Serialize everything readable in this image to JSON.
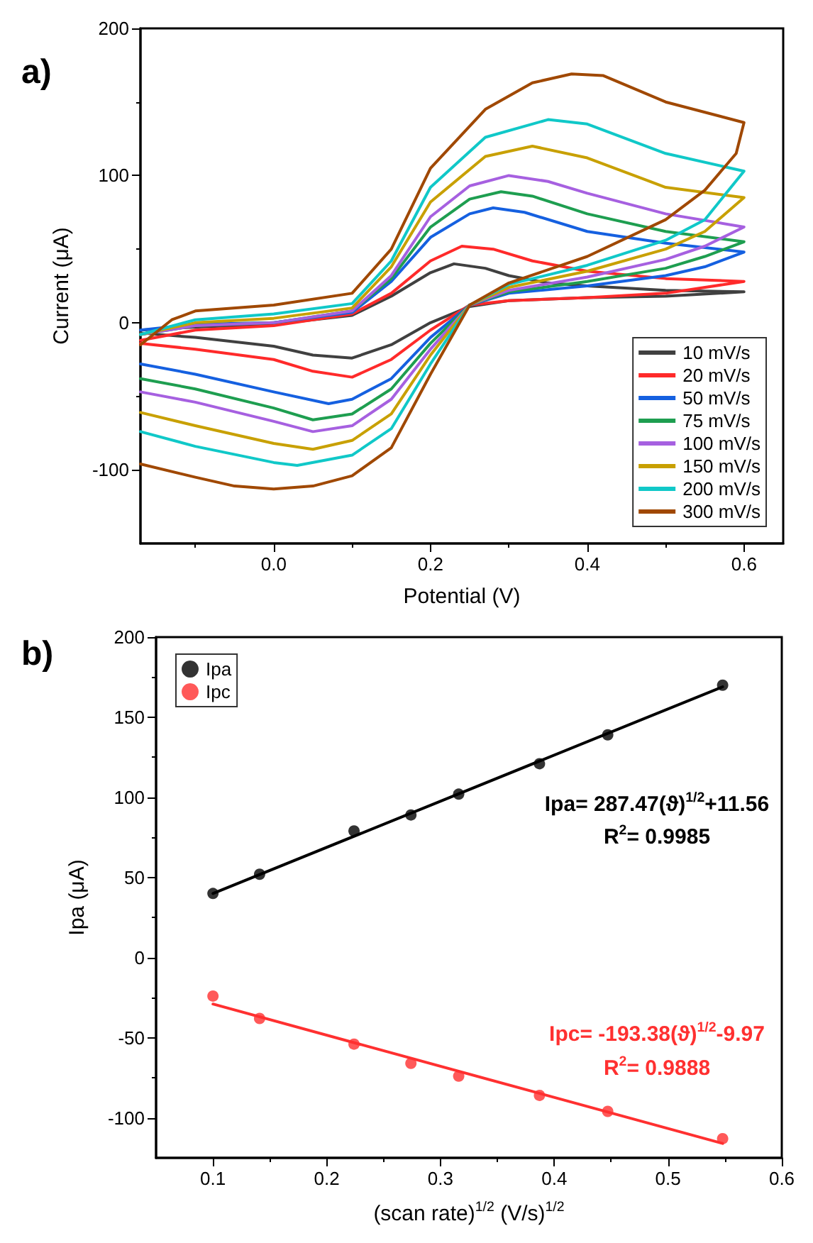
{
  "chart_data": [
    {
      "type": "line",
      "title": "a)",
      "xlabel": "Potential (V)",
      "ylabel": "Current (μA)",
      "xlim": [
        -0.17,
        0.65
      ],
      "xticks": [
        {
          "value": 0,
          "label": "0.0"
        },
        0.2,
        0.4,
        0.6
      ],
      "ylim": [
        -150,
        200
      ],
      "yticks": [
        -100,
        0,
        100,
        200
      ],
      "grid": false,
      "legend": "bottom right",
      "marker": "none",
      "line_style": "solid",
      "series": [
        {
          "name": "10 mV/s",
          "color": "#404040",
          "x": [
            -0.17,
            -0.1,
            0,
            0.1,
            0.15,
            0.2,
            0.23,
            0.27,
            0.3,
            0.35,
            0.4,
            0.5,
            0.6,
            0.5,
            0.4,
            0.3,
            0.25,
            0.2,
            0.15,
            0.1,
            0.05,
            0,
            -0.1,
            -0.17
          ],
          "values": [
            -5,
            -3,
            -1,
            5,
            18,
            34,
            40,
            37,
            32,
            27,
            25,
            22,
            21,
            18,
            17,
            15,
            11,
            0,
            -15,
            -24,
            -22,
            -16,
            -10,
            -7
          ]
        },
        {
          "name": "20 mV/s",
          "color": "#ff2a2a",
          "x": [
            -0.17,
            -0.1,
            0,
            0.1,
            0.15,
            0.2,
            0.24,
            0.28,
            0.33,
            0.4,
            0.5,
            0.6,
            0.5,
            0.4,
            0.3,
            0.25,
            0.2,
            0.15,
            0.1,
            0.05,
            0,
            -0.1,
            -0.17
          ],
          "values": [
            -12,
            -5,
            -2,
            6,
            20,
            42,
            52,
            50,
            42,
            35,
            30,
            28,
            20,
            17,
            15,
            12,
            -5,
            -25,
            -37,
            -33,
            -25,
            -18,
            -14
          ]
        },
        {
          "name": "50 mV/s",
          "color": "#1560e0",
          "x": [
            -0.17,
            -0.1,
            0,
            0.1,
            0.15,
            0.2,
            0.25,
            0.28,
            0.32,
            0.4,
            0.5,
            0.6,
            0.55,
            0.5,
            0.4,
            0.3,
            0.25,
            0.2,
            0.15,
            0.1,
            0.07,
            0,
            -0.1,
            -0.17
          ],
          "values": [
            -5,
            -1,
            0,
            7,
            28,
            58,
            74,
            78,
            75,
            62,
            54,
            48,
            38,
            32,
            25,
            20,
            12,
            -10,
            -38,
            -52,
            -55,
            -47,
            -35,
            -28
          ]
        },
        {
          "name": "75 mV/s",
          "color": "#1e9e50",
          "x": [
            -0.17,
            -0.1,
            0,
            0.1,
            0.15,
            0.2,
            0.25,
            0.29,
            0.33,
            0.4,
            0.5,
            0.6,
            0.55,
            0.5,
            0.4,
            0.3,
            0.25,
            0.2,
            0.15,
            0.1,
            0.05,
            0,
            -0.1,
            -0.17
          ],
          "values": [
            -8,
            -2,
            0,
            8,
            30,
            65,
            84,
            89,
            86,
            74,
            62,
            55,
            45,
            37,
            28,
            21,
            12,
            -14,
            -45,
            -62,
            -66,
            -58,
            -45,
            -38
          ]
        },
        {
          "name": "100 mV/s",
          "color": "#a660e0",
          "x": [
            -0.17,
            -0.1,
            0,
            0.1,
            0.15,
            0.2,
            0.25,
            0.3,
            0.35,
            0.4,
            0.5,
            0.6,
            0.55,
            0.5,
            0.4,
            0.3,
            0.25,
            0.2,
            0.15,
            0.1,
            0.05,
            0,
            -0.1,
            -0.17
          ],
          "values": [
            -8,
            -2,
            0,
            8,
            32,
            72,
            93,
            100,
            96,
            88,
            74,
            65,
            52,
            43,
            31,
            22,
            12,
            -18,
            -52,
            -70,
            -74,
            -67,
            -54,
            -47
          ]
        },
        {
          "name": "150 mV/s",
          "color": "#c8a000",
          "x": [
            -0.17,
            -0.1,
            0,
            0.1,
            0.15,
            0.2,
            0.27,
            0.33,
            0.4,
            0.5,
            0.6,
            0.55,
            0.5,
            0.4,
            0.3,
            0.25,
            0.2,
            0.15,
            0.1,
            0.05,
            0,
            -0.1,
            -0.17
          ],
          "values": [
            -8,
            0,
            3,
            10,
            38,
            82,
            113,
            120,
            112,
            92,
            85,
            62,
            50,
            35,
            24,
            12,
            -22,
            -62,
            -80,
            -86,
            -82,
            -70,
            -61
          ]
        },
        {
          "name": "200 mV/s",
          "color": "#10c8c8",
          "x": [
            -0.17,
            -0.1,
            0,
            0.1,
            0.15,
            0.2,
            0.27,
            0.35,
            0.4,
            0.5,
            0.6,
            0.55,
            0.5,
            0.4,
            0.3,
            0.25,
            0.2,
            0.15,
            0.1,
            0.03,
            0,
            -0.1,
            -0.17
          ],
          "values": [
            -8,
            2,
            6,
            13,
            42,
            92,
            126,
            138,
            135,
            115,
            103,
            70,
            56,
            39,
            26,
            12,
            -28,
            -72,
            -90,
            -97,
            -95,
            -84,
            -74
          ]
        },
        {
          "name": "300 mV/s",
          "color": "#a04800",
          "x": [
            -0.17,
            -0.13,
            -0.1,
            0,
            0.1,
            0.15,
            0.2,
            0.27,
            0.33,
            0.38,
            0.42,
            0.5,
            0.6,
            0.59,
            0.55,
            0.5,
            0.4,
            0.3,
            0.25,
            0.2,
            0.15,
            0.1,
            0.05,
            0,
            -0.05,
            -0.1,
            -0.17
          ],
          "values": [
            -15,
            2,
            8,
            12,
            20,
            50,
            105,
            145,
            163,
            169,
            168,
            150,
            136,
            115,
            90,
            70,
            45,
            27,
            12,
            -35,
            -85,
            -104,
            -111,
            -113,
            -111,
            -105,
            -96
          ]
        }
      ]
    },
    {
      "type": "scatter",
      "title": "b)",
      "xlabel": "(scan rate)$^{1/2}$ (V/s)$^{1/2}$",
      "ylabel": "Ipa (μA)",
      "xlim": [
        0.05,
        0.6
      ],
      "xticks": [
        0.1,
        0.2,
        0.3,
        0.4,
        0.5,
        0.6
      ],
      "ylim": [
        -125,
        200
      ],
      "yticks": [
        -100,
        -50,
        0,
        50,
        100,
        150,
        200
      ],
      "grid": false,
      "legend": "top left",
      "marker": "circle",
      "annotations": [
        "Ipa= 287.47(ϑ)$^{1/2}$+11.56",
        "R$^{2}$= 0.9985",
        "Ipc= -193.38(ϑ)$^{1/2}$-9.97",
        "R$^{2}$= 0.9888"
      ],
      "series": [
        {
          "name": "Ipa",
          "color": "#000000",
          "x": [
            0.1,
            0.141,
            0.224,
            0.274,
            0.316,
            0.387,
            0.447,
            0.548
          ],
          "values": [
            40,
            52,
            79,
            89,
            102,
            121,
            139,
            170
          ]
        },
        {
          "name": "Ipc",
          "color": "#ff3030",
          "x": [
            0.1,
            0.141,
            0.224,
            0.274,
            0.316,
            0.387,
            0.447,
            0.548
          ],
          "values": [
            -24,
            -38,
            -54,
            -66,
            -74,
            -86,
            -96,
            -113
          ]
        },
        {
          "type": "line",
          "marker": "none",
          "color": "#000000",
          "x": [
            0.1,
            0.548
          ],
          "values": [
            40,
            169
          ]
        },
        {
          "type": "line",
          "marker": "none",
          "color": "#ff3030",
          "x": [
            0.1,
            0.548
          ],
          "values": [
            -29,
            -116
          ]
        }
      ]
    }
  ]
}
